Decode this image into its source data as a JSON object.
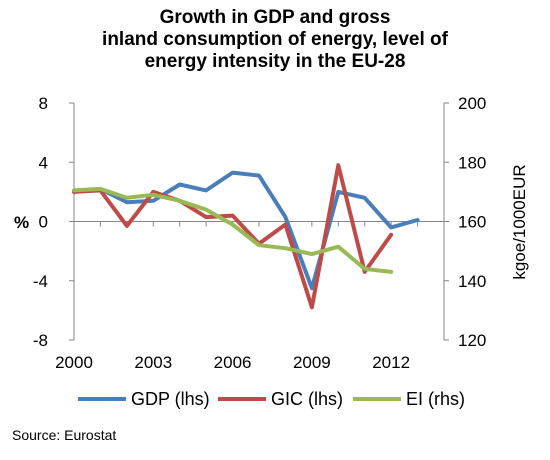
{
  "chart_data": {
    "type": "line",
    "title_lines": [
      "Growth in GDP and gross",
      "inland consumption of energy, level of",
      "energy intensity in the EU-28"
    ],
    "ylabel_left": "%",
    "ylabel_right": "kgoe/1000EUR",
    "x": [
      2000,
      2001,
      2002,
      2003,
      2004,
      2005,
      2006,
      2007,
      2008,
      2009,
      2010,
      2011,
      2012,
      2013
    ],
    "x_ticks": [
      "2000",
      "2003",
      "2006",
      "2009",
      "2012"
    ],
    "xlim": [
      2000,
      2014
    ],
    "ylim_left": [
      -8,
      8
    ],
    "ylim_right": [
      120,
      200
    ],
    "y_ticks_left": [
      "8",
      "4",
      "0",
      "-4",
      "-8"
    ],
    "y_ticks_right": [
      "200",
      "180",
      "160",
      "140",
      "120"
    ],
    "series": [
      {
        "name": "GDP (lhs)",
        "axis": "left",
        "color": "#4a7ebb",
        "x": [
          2000,
          2001,
          2002,
          2003,
          2004,
          2005,
          2006,
          2007,
          2008,
          2009,
          2010,
          2011,
          2012,
          2013
        ],
        "values": [
          2.0,
          2.2,
          1.3,
          1.4,
          2.5,
          2.1,
          3.3,
          3.1,
          0.3,
          -4.5,
          2.0,
          1.6,
          -0.4,
          0.1
        ]
      },
      {
        "name": "GIC (lhs)",
        "axis": "left",
        "color": "#be4b48",
        "x": [
          2000,
          2001,
          2002,
          2003,
          2004,
          2005,
          2006,
          2007,
          2008,
          2009,
          2010,
          2011,
          2012
        ],
        "values": [
          2.0,
          2.1,
          -0.3,
          2.0,
          1.4,
          0.3,
          0.4,
          -1.5,
          -0.2,
          -5.8,
          3.8,
          -3.4,
          -0.9
        ]
      },
      {
        "name": "EI (rhs)",
        "axis": "right",
        "color": "#98b954",
        "x": [
          2000,
          2001,
          2002,
          2003,
          2004,
          2005,
          2006,
          2007,
          2008,
          2009,
          2010,
          2011,
          2012
        ],
        "values": [
          170.5,
          171,
          168,
          169,
          167,
          164,
          159,
          152,
          151,
          149,
          151.5,
          144,
          143
        ]
      }
    ],
    "legend_position": "bottom",
    "grid": false,
    "source": "Source: Eurostat"
  }
}
